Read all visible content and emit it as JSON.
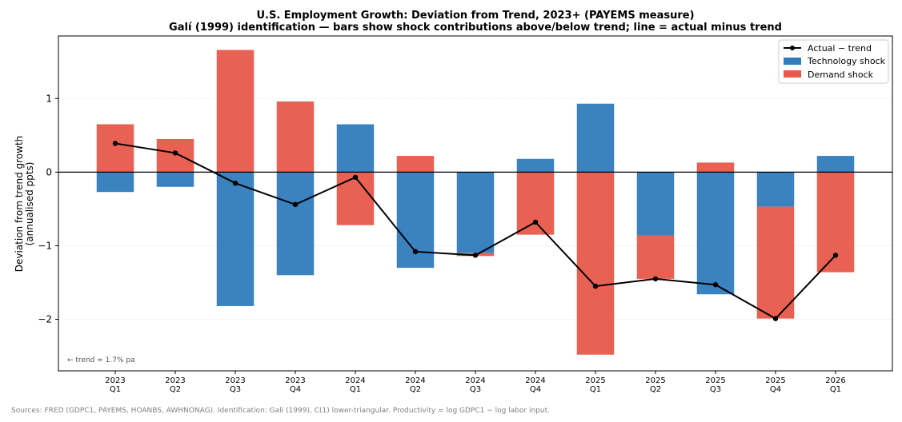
{
  "chart_data": {
    "type": "bar",
    "title": "U.S. Employment Growth: Deviation from Trend, 2023+ (PAYEMS measure)",
    "subtitle": "Galí (1999) identification — bars show shock contributions above/below trend; line = actual minus trend",
    "ylabel_line1": "Deviation from trend growth",
    "ylabel_line2": "(annualised ppts)",
    "xlabel": "",
    "ylim": [
      -2.7,
      1.85
    ],
    "yticks": [
      -2,
      -1,
      0,
      1
    ],
    "ytick_labels": [
      "−2",
      "−1",
      "0",
      "1"
    ],
    "grid": true,
    "stacked": true,
    "categories": [
      {
        "year": "2023",
        "quarter": "Q1"
      },
      {
        "year": "2023",
        "quarter": "Q2"
      },
      {
        "year": "2023",
        "quarter": "Q3"
      },
      {
        "year": "2023",
        "quarter": "Q4"
      },
      {
        "year": "2024",
        "quarter": "Q1"
      },
      {
        "year": "2024",
        "quarter": "Q2"
      },
      {
        "year": "2024",
        "quarter": "Q3"
      },
      {
        "year": "2024",
        "quarter": "Q4"
      },
      {
        "year": "2025",
        "quarter": "Q1"
      },
      {
        "year": "2025",
        "quarter": "Q2"
      },
      {
        "year": "2025",
        "quarter": "Q3"
      },
      {
        "year": "2025",
        "quarter": "Q4"
      },
      {
        "year": "2026",
        "quarter": "Q1"
      }
    ],
    "series": [
      {
        "name": "Technology shock",
        "kind": "bar",
        "color": "#2f7bbd",
        "values": [
          -0.27,
          -0.2,
          -1.82,
          -1.4,
          0.65,
          -1.3,
          -1.1,
          0.18,
          0.93,
          -0.86,
          -1.66,
          -0.47,
          0.22
        ]
      },
      {
        "name": "Demand shock",
        "kind": "bar",
        "color": "#e8594a",
        "values": [
          0.65,
          0.45,
          1.66,
          0.96,
          -0.72,
          0.22,
          -0.04,
          -0.85,
          -2.48,
          -0.59,
          0.13,
          -1.52,
          -1.36
        ]
      },
      {
        "name": "Actual − trend",
        "kind": "line",
        "color": "#000000",
        "values": [
          0.39,
          0.26,
          -0.15,
          -0.44,
          -0.07,
          -1.08,
          -1.13,
          -0.68,
          -1.55,
          -1.45,
          -1.53,
          -1.99,
          -1.13
        ]
      }
    ],
    "legend_position": "top-right",
    "trend_note": "← trend ≈ 1.7% pa"
  },
  "footnote": "Sources: FRED (GDPC1, PAYEMS, HOANBS, AWHNONAG). Identification: Galí (1999), C(1) lower-triangular. Productivity = log GDPC1 − log labor input."
}
